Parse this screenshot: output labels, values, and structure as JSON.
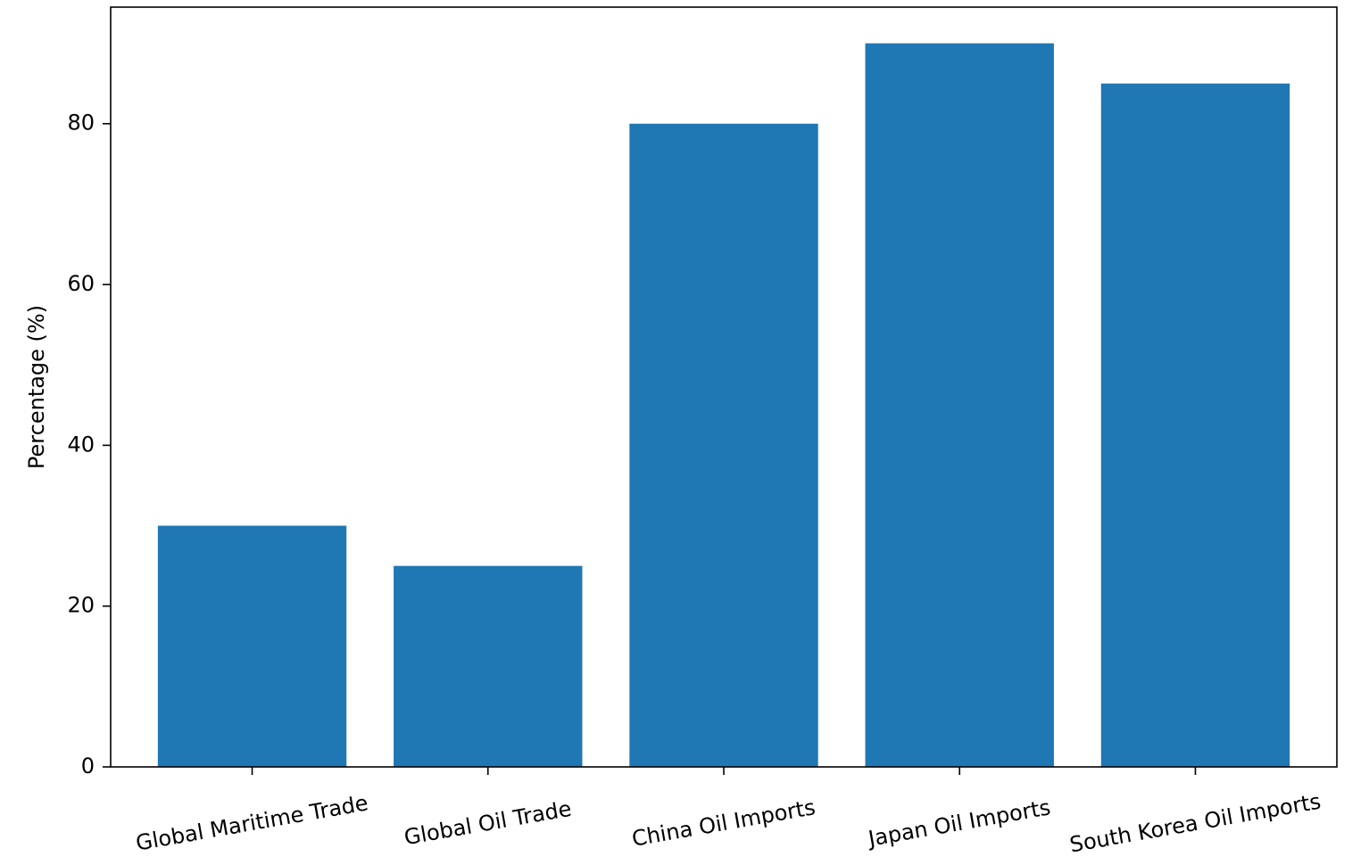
{
  "chart_data": {
    "type": "bar",
    "title": "",
    "xlabel": "",
    "ylabel": "Percentage (%)",
    "categories": [
      "Global Maritime Trade",
      "Global Oil Trade",
      "China Oil Imports",
      "Japan Oil Imports",
      "South Korea Oil Imports"
    ],
    "values": [
      30,
      25,
      80,
      90,
      85
    ],
    "ylim": [
      0,
      94.5
    ],
    "yticks": [
      0,
      20,
      40,
      60,
      80
    ],
    "bar_color": "#1f77b4",
    "grid": false,
    "legend": "none"
  }
}
